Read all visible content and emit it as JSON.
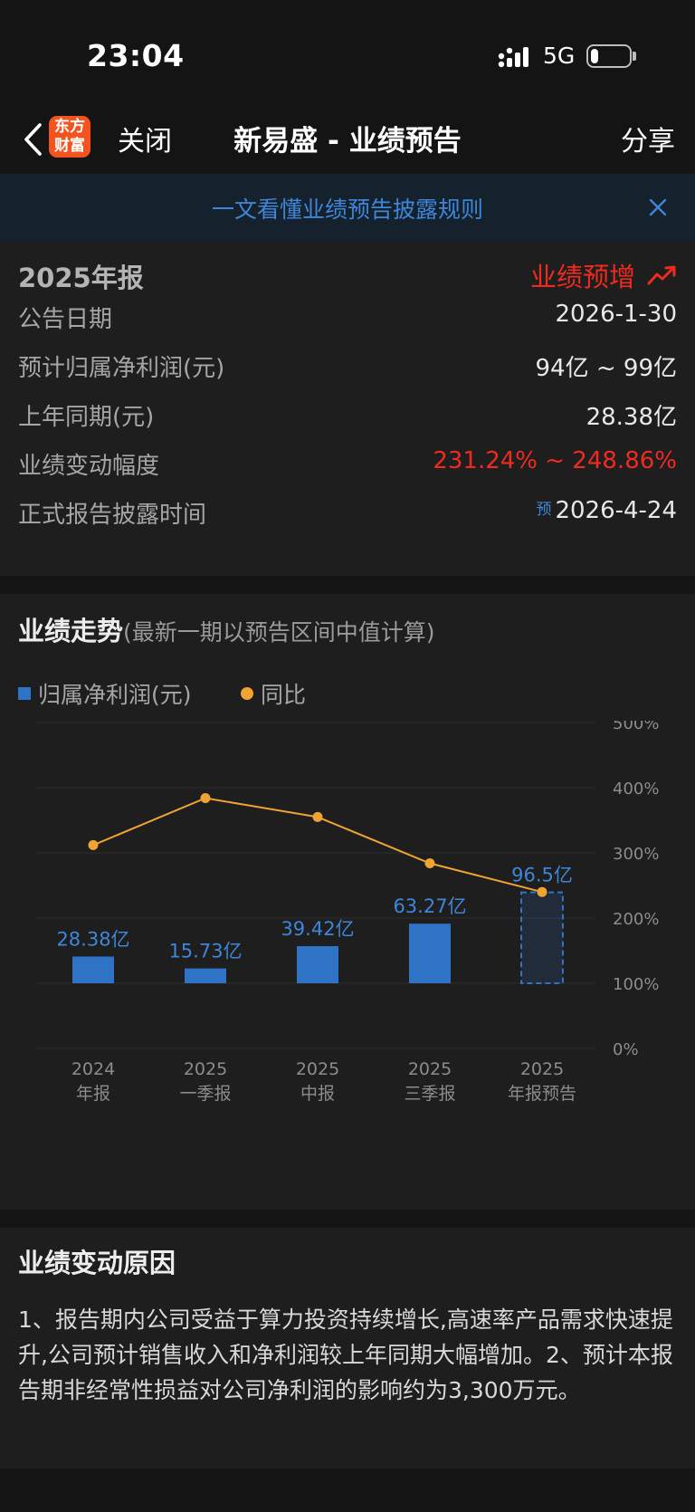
{
  "status_bar": {
    "time": "23:04",
    "network": "5G",
    "battery_level": 0.2
  },
  "nav": {
    "logo_line1": "东方",
    "logo_line2": "财富",
    "close_label": "关闭",
    "title": "新易盛 - 业绩预告",
    "share_label": "分享"
  },
  "banner": {
    "text": "一文看懂业绩预告披露规则"
  },
  "report": {
    "title": "2025年报",
    "type_label": "业绩预增",
    "rows": [
      {
        "label": "公告日期",
        "value": "2026-1-30"
      },
      {
        "label": "预计归属净利润(元)",
        "value": "94亿 ~ 99亿"
      },
      {
        "label": "上年同期(元)",
        "value": "28.38亿"
      },
      {
        "label": "业绩变动幅度",
        "value": "231.24% ~ 248.86%"
      },
      {
        "label": "正式报告披露时间",
        "prefix": "预",
        "value": "2026-4-24"
      }
    ]
  },
  "chart": {
    "title": "业绩走势",
    "note": "(最新一期以预告区间中值计算)",
    "legend_bar": "归属净利润(元)",
    "legend_line": "同比"
  },
  "chart_data": {
    "type": "bar",
    "categories": [
      {
        "line1": "2024",
        "line2": "年报"
      },
      {
        "line1": "2025",
        "line2": "一季报"
      },
      {
        "line1": "2025",
        "line2": "中报"
      },
      {
        "line1": "2025",
        "line2": "三季报"
      },
      {
        "line1": "2025",
        "line2": "年报预告"
      }
    ],
    "bar_values": [
      28.38,
      15.73,
      39.42,
      63.27,
      96.5
    ],
    "bar_labels": [
      "28.38亿",
      "15.73亿",
      "39.42亿",
      "63.27亿",
      "96.5亿"
    ],
    "bar_forecast_index": 4,
    "line_values": [
      312,
      384,
      355,
      284,
      240
    ],
    "y_right_ticks": [
      "500%",
      "400%",
      "300%",
      "200%",
      "100%",
      "0%"
    ],
    "y_right_range": [
      0,
      500
    ],
    "grid": true,
    "colors": {
      "bar": "#2f73c6",
      "line": "#f0a233",
      "label": "#3d86d8",
      "grid": "#2c2c2c"
    }
  },
  "reason": {
    "title": "业绩变动原因",
    "text": "1、报告期内公司受益于算力投资持续增长,高速率产品需求快速提升,公司预计销售收入和净利润较上年同期大幅增加。2、预计本报告期非经常性损益对公司净利润的影响约为3,300万元。"
  }
}
